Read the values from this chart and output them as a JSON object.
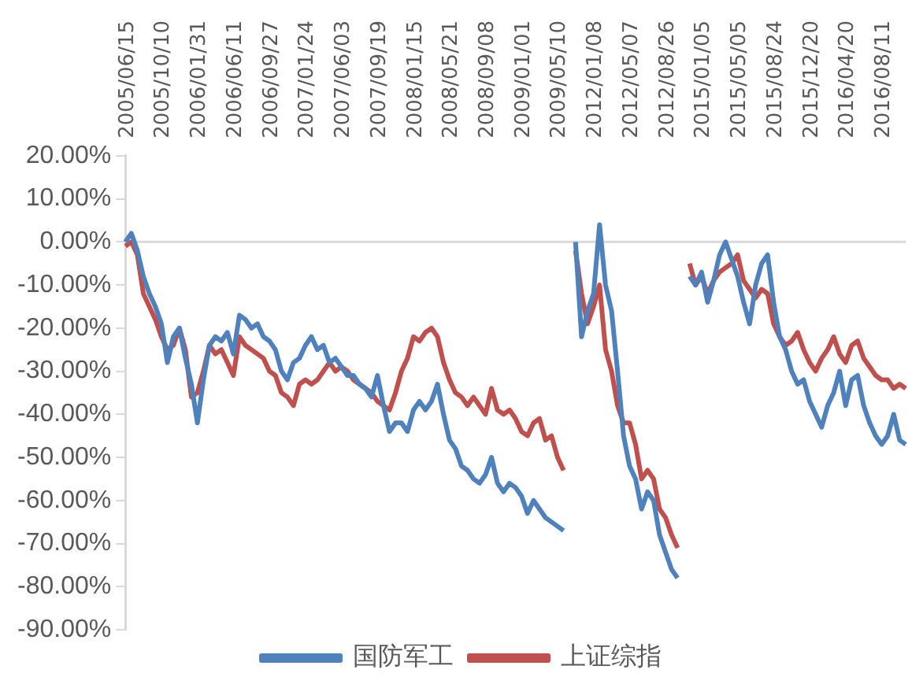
{
  "chart_data": {
    "type": "line",
    "categories": [
      "2005/06/15",
      null,
      null,
      null,
      null,
      null,
      "2005/10/10",
      null,
      null,
      null,
      null,
      null,
      "2006/01/31",
      null,
      null,
      null,
      null,
      null,
      "2006/06/11",
      null,
      null,
      null,
      null,
      null,
      "2006/09/27",
      null,
      null,
      null,
      null,
      null,
      "2007/01/24",
      null,
      null,
      null,
      null,
      null,
      "2007/06/03",
      null,
      null,
      null,
      null,
      null,
      "2007/09/19",
      null,
      null,
      null,
      null,
      null,
      "2008/01/15",
      null,
      null,
      null,
      null,
      null,
      "2008/05/21",
      null,
      null,
      null,
      null,
      null,
      "2008/09/08",
      null,
      null,
      null,
      null,
      null,
      "2009/01/01",
      null,
      null,
      null,
      null,
      null,
      "2009/05/10",
      null,
      null,
      null,
      null,
      null,
      "2012/01/08",
      null,
      null,
      null,
      null,
      null,
      "2012/05/07",
      null,
      null,
      null,
      null,
      null,
      "2012/08/26",
      null,
      null,
      null,
      null,
      null,
      "2015/01/05",
      null,
      null,
      null,
      null,
      null,
      "2015/05/05",
      null,
      null,
      null,
      null,
      null,
      "2015/08/24",
      null,
      null,
      null,
      null,
      null,
      "2015/12/20",
      null,
      null,
      null,
      null,
      null,
      "2016/04/20",
      null,
      null,
      null,
      null,
      null,
      "2016/08/11",
      null,
      null,
      null,
      null
    ],
    "series": [
      {
        "name": "国防军工",
        "color": "#4f81bd",
        "values": [
          0,
          2,
          -2,
          -8,
          -12,
          -15,
          -19,
          -28,
          -22,
          -20,
          -27,
          -33,
          -42,
          -32,
          -24,
          -22,
          -23,
          -21,
          -26,
          -17,
          -18,
          -20,
          -19,
          -22,
          -23,
          -25,
          -30,
          -32,
          -28,
          -27,
          -24,
          -22,
          -25,
          -24,
          -28,
          -27,
          -29,
          -31,
          -31,
          -33,
          -34,
          -36,
          -31,
          -38,
          -44,
          -42,
          -42,
          -44,
          -39,
          -37,
          -39,
          -37,
          -33,
          -40,
          -46,
          -48,
          -52,
          -53,
          -55,
          -56,
          -54,
          -50,
          -56,
          -58,
          -56,
          -57,
          -59,
          -63,
          -60,
          -62,
          -64,
          -65,
          -66,
          -67,
          null,
          0,
          -22,
          -16,
          -12,
          4,
          -10,
          -16,
          -30,
          -45,
          -52,
          -55,
          -62,
          -58,
          -60,
          -68,
          -72,
          -76,
          -78,
          null,
          -8,
          -10,
          -7,
          -14,
          -9,
          -3,
          0,
          -4,
          -8,
          -14,
          -19,
          -10,
          -5,
          -3,
          -14,
          -22,
          -25,
          -30,
          -33,
          -32,
          -37,
          -40,
          -43,
          -38,
          -35,
          -30,
          -38,
          -32,
          -31,
          -38,
          -42,
          -45,
          -47,
          -45,
          -40,
          -46,
          -47
        ]
      },
      {
        "name": "上证综指",
        "color": "#c0504d",
        "values": [
          -1,
          0,
          -3,
          -12,
          -15,
          -18,
          -22,
          -25,
          -24,
          -20,
          -25,
          -36,
          -35,
          -30,
          -24,
          -26,
          -25,
          -28,
          -31,
          -22,
          -24,
          -25,
          -26,
          -27,
          -30,
          -31,
          -35,
          -36,
          -38,
          -33,
          -32,
          -33,
          -32,
          -30,
          -28,
          -30,
          -29,
          -30,
          -32,
          -33,
          -34,
          -35,
          -37,
          -38,
          -39,
          -35,
          -30,
          -27,
          -22,
          -23,
          -21,
          -20,
          -22,
          -28,
          -32,
          -35,
          -36,
          -38,
          -36,
          -38,
          -40,
          -34,
          -39,
          -40,
          -39,
          -41,
          -44,
          -45,
          -42,
          -41,
          -46,
          -45,
          -50,
          -53,
          null,
          -2,
          -12,
          -19,
          -15,
          -10,
          -25,
          -30,
          -38,
          -42,
          -42,
          -47,
          -55,
          -53,
          -55,
          -62,
          -64,
          -68,
          -71,
          null,
          -5,
          -10,
          -8,
          -12,
          -9,
          -7,
          -6,
          -5,
          -3,
          -9,
          -11,
          -13,
          -11,
          -12,
          -19,
          -22,
          -24,
          -23,
          -21,
          -25,
          -28,
          -30,
          -27,
          -25,
          -22,
          -26,
          -28,
          -24,
          -23,
          -27,
          -29,
          -31,
          -32,
          -32,
          -34,
          -33,
          -34
        ]
      }
    ],
    "ylim": [
      -90,
      20
    ],
    "yticks": [
      {
        "value": -90,
        "label": "-90.00%"
      },
      {
        "value": -80,
        "label": "-80.00%"
      },
      {
        "value": -70,
        "label": "-70.00%"
      },
      {
        "value": -60,
        "label": "-60.00%"
      },
      {
        "value": -50,
        "label": "-50.00%"
      },
      {
        "value": -40,
        "label": "-40.00%"
      },
      {
        "value": -30,
        "label": "-30.00%"
      },
      {
        "value": -20,
        "label": "-20.00%"
      },
      {
        "value": -10,
        "label": "-10.00%"
      },
      {
        "value": 0,
        "label": "0.00%"
      },
      {
        "value": 10,
        "label": "10.00%"
      },
      {
        "value": 20,
        "label": "20.00%"
      }
    ],
    "ref_lines": [
      {
        "axis": "y",
        "value": 0,
        "color": "#d9d9d9"
      }
    ],
    "legend": "bottom",
    "marker": "none",
    "line_style": "solid"
  }
}
